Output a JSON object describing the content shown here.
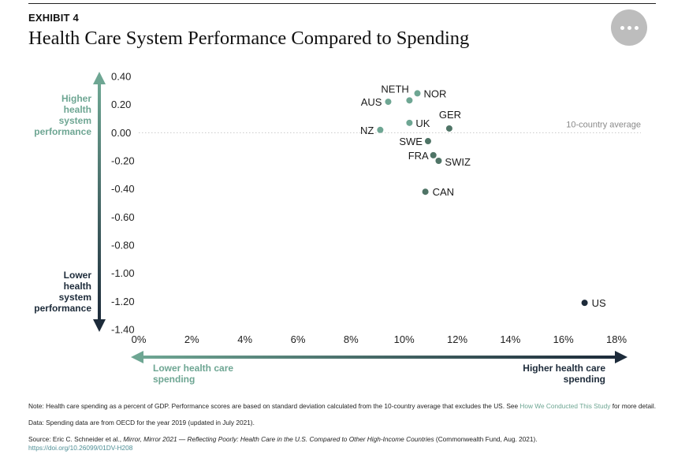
{
  "header": {
    "exhibit": "EXHIBIT 4",
    "title": "Health Care System Performance Compared to Spending"
  },
  "more_button": {
    "icon": "more-horizontal-icon"
  },
  "axis_labels": {
    "y_top": [
      "Higher",
      "health",
      "system",
      "performance"
    ],
    "y_bottom": [
      "Lower",
      "health",
      "system",
      "performance"
    ],
    "x_left": [
      "Lower health care",
      "spending"
    ],
    "x_right": [
      "Higher health care",
      "spending"
    ]
  },
  "colors": {
    "green": "#6ea693",
    "mid": "#4f7466",
    "navy": "#1d2b3a",
    "avg_line": "#c9c9c9"
  },
  "chart_data": {
    "type": "scatter",
    "title": "Health Care System Performance Compared to Spending",
    "xlim": [
      0,
      18
    ],
    "ylim": [
      -1.4,
      0.4
    ],
    "x_ticks": [
      "0%",
      "2%",
      "4%",
      "6%",
      "8%",
      "10%",
      "12%",
      "14%",
      "16%",
      "18%"
    ],
    "y_ticks": [
      "0.40",
      "0.20",
      "0.00",
      "-0.20",
      "-0.40",
      "-0.60",
      "-0.80",
      "-1.00",
      "-1.20",
      "-1.40"
    ],
    "reference_line": {
      "y": 0,
      "label": "10-country average"
    },
    "grid": false,
    "points": [
      {
        "label": "NETH",
        "x": 10.2,
        "y": 0.23,
        "tone": "green"
      },
      {
        "label": "NOR",
        "x": 10.5,
        "y": 0.28,
        "tone": "green"
      },
      {
        "label": "AUS",
        "x": 9.4,
        "y": 0.22,
        "tone": "green"
      },
      {
        "label": "UK",
        "x": 10.2,
        "y": 0.07,
        "tone": "green"
      },
      {
        "label": "GER",
        "x": 11.7,
        "y": 0.03,
        "tone": "mid"
      },
      {
        "label": "NZ",
        "x": 9.1,
        "y": 0.02,
        "tone": "green"
      },
      {
        "label": "SWE",
        "x": 10.9,
        "y": -0.06,
        "tone": "mid"
      },
      {
        "label": "FRA",
        "x": 11.1,
        "y": -0.16,
        "tone": "mid"
      },
      {
        "label": "SWIZ",
        "x": 11.3,
        "y": -0.2,
        "tone": "mid"
      },
      {
        "label": "CAN",
        "x": 10.8,
        "y": -0.42,
        "tone": "mid"
      },
      {
        "label": "US",
        "x": 16.8,
        "y": -1.21,
        "tone": "navy"
      }
    ]
  },
  "notes": {
    "note_text": "Note: Health care spending as a percent of GDP. Performance scores are based on standard deviation calculated from the 10-country average that excludes the US. See ",
    "note_link": "How We Conducted This Study",
    "note_end": " for more detail.",
    "data_text": "Data: Spending data are from OECD for the year 2019 (updated in July 2021).",
    "source_prefix": "Source: Eric C. Schneider et al., ",
    "source_title": "Mirror, Mirror 2021 — Reflecting Poorly: Health Care in the U.S. Compared to Other High-Income Countries",
    "source_suffix": " (Commonwealth Fund, Aug. 2021).",
    "doi": "https://doi.org/10.26099/01DV-H208"
  }
}
